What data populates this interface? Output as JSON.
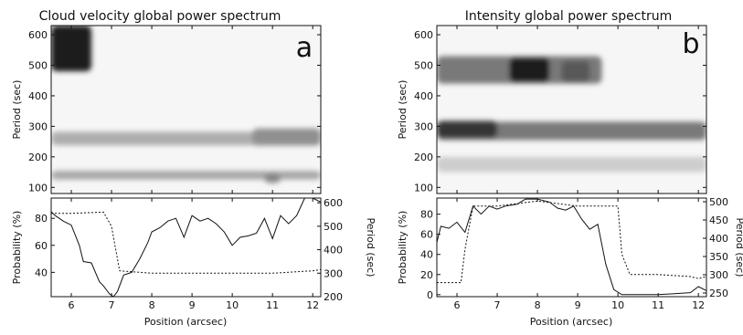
{
  "chart_data": [
    {
      "type": "heatmap",
      "title": "Cloud velocity global power spectrum",
      "panel_label": "a",
      "ylabel": "Period (sec)",
      "xlim": [
        5.5,
        12.2
      ],
      "ylim": [
        80,
        630
      ],
      "yticks": [
        100,
        200,
        300,
        400,
        500,
        600
      ],
      "grayscale": "darker = more power",
      "bands": [
        {
          "x_start": 5.5,
          "x_end": 6.5,
          "period": 555,
          "halfwidth": 75,
          "power": 0.95
        },
        {
          "x_start": 5.5,
          "x_end": 12.2,
          "period": 260,
          "halfwidth": 22,
          "power": 0.32
        },
        {
          "x_start": 10.5,
          "x_end": 12.2,
          "period": 265,
          "halfwidth": 28,
          "power": 0.45
        },
        {
          "x_start": 5.5,
          "x_end": 12.2,
          "period": 140,
          "halfwidth": 14,
          "power": 0.35
        },
        {
          "x_start": 10.8,
          "x_end": 11.2,
          "period": 130,
          "halfwidth": 15,
          "power": 0.5
        }
      ]
    },
    {
      "type": "line",
      "xlabel": "Position (arcsec)",
      "ylabel": "Probability (%)",
      "ylabel_right": "Period (sec)",
      "xlim": [
        5.5,
        12.2
      ],
      "xticks": [
        6,
        7,
        8,
        9,
        10,
        11,
        12
      ],
      "ylim": [
        22,
        95
      ],
      "yticks": [
        40,
        60,
        80
      ],
      "ylim_right": [
        200,
        620
      ],
      "yticks_right": [
        200,
        300,
        400,
        500,
        600
      ],
      "series": [
        {
          "axis": "left",
          "style": "solid",
          "x": [
            5.5,
            5.6,
            5.8,
            6.0,
            6.2,
            6.3,
            6.5,
            6.7,
            6.8,
            6.95,
            7.05,
            7.15,
            7.3,
            7.5,
            7.7,
            7.9,
            8.0,
            8.2,
            8.4,
            8.6,
            8.8,
            9.0,
            9.2,
            9.4,
            9.6,
            9.8,
            10.0,
            10.2,
            10.4,
            10.6,
            10.8,
            11.0,
            11.2,
            11.4,
            11.6,
            11.8,
            12.0,
            12.2
          ],
          "y": [
            85,
            82,
            78,
            75,
            60,
            48,
            47,
            33,
            30,
            24,
            22,
            26,
            38,
            40,
            50,
            62,
            70,
            73,
            78,
            80,
            66,
            82,
            78,
            80,
            76,
            70,
            60,
            66,
            67,
            69,
            80,
            65,
            82,
            76,
            82,
            95,
            95,
            92
          ]
        },
        {
          "axis": "right",
          "style": "dotted",
          "x": [
            5.5,
            6.0,
            6.8,
            7.0,
            7.2,
            8.0,
            9.0,
            10.0,
            11.0,
            12.0,
            12.2
          ],
          "y": [
            555,
            555,
            560,
            500,
            310,
            300,
            300,
            300,
            300,
            310,
            315
          ]
        }
      ]
    },
    {
      "type": "heatmap",
      "title": "Intensity global power spectrum",
      "panel_label": "b",
      "ylabel": "Period (sec)",
      "xlim": [
        5.5,
        12.2
      ],
      "ylim": [
        80,
        630
      ],
      "yticks": [
        100,
        200,
        300,
        400,
        500,
        600
      ],
      "grayscale": "darker = more power",
      "bands": [
        {
          "x_start": 5.5,
          "x_end": 9.6,
          "period": 485,
          "halfwidth": 45,
          "power": 0.55
        },
        {
          "x_start": 7.3,
          "x_end": 8.3,
          "period": 485,
          "halfwidth": 40,
          "power": 0.95
        },
        {
          "x_start": 8.6,
          "x_end": 9.3,
          "period": 480,
          "halfwidth": 35,
          "power": 0.7
        },
        {
          "x_start": 5.5,
          "x_end": 12.2,
          "period": 285,
          "halfwidth": 30,
          "power": 0.55
        },
        {
          "x_start": 5.5,
          "x_end": 7.0,
          "period": 290,
          "halfwidth": 28,
          "power": 0.85
        },
        {
          "x_start": 5.5,
          "x_end": 12.2,
          "period": 175,
          "halfwidth": 25,
          "power": 0.18
        }
      ]
    },
    {
      "type": "line",
      "xlabel": "Position (arcsec)",
      "ylabel": "Probability (%)",
      "ylabel_right": "Period (sec)",
      "xlim": [
        5.5,
        12.2
      ],
      "xticks": [
        6,
        7,
        8,
        9,
        10,
        11,
        12
      ],
      "ylim": [
        -2,
        96
      ],
      "yticks": [
        0,
        20,
        40,
        60,
        80
      ],
      "ylim_right": [
        240,
        510
      ],
      "yticks_right": [
        250,
        300,
        350,
        400,
        450,
        500
      ],
      "series": [
        {
          "axis": "left",
          "style": "solid",
          "x": [
            5.5,
            5.6,
            5.8,
            6.0,
            6.2,
            6.4,
            6.6,
            6.8,
            7.0,
            7.2,
            7.5,
            7.7,
            8.0,
            8.3,
            8.5,
            8.7,
            8.9,
            9.1,
            9.3,
            9.5,
            9.7,
            9.9,
            10.1,
            10.4,
            10.7,
            11.0,
            11.4,
            11.8,
            12.0,
            12.2
          ],
          "y": [
            52,
            68,
            66,
            72,
            62,
            88,
            80,
            88,
            85,
            88,
            90,
            95,
            95,
            92,
            86,
            84,
            88,
            75,
            65,
            70,
            30,
            5,
            0,
            0,
            0,
            0,
            1,
            2,
            8,
            4
          ]
        },
        {
          "axis": "left",
          "style": "dotted",
          "x": [
            5.5,
            6.1,
            6.2,
            6.4,
            7.0,
            8.0,
            9.0,
            10.0,
            10.1,
            10.3,
            11.0,
            11.8,
            12.0,
            12.2
          ],
          "y": [
            12,
            12,
            45,
            88,
            88,
            93,
            88,
            88,
            40,
            20,
            20,
            18,
            16,
            18
          ]
        }
      ]
    }
  ]
}
